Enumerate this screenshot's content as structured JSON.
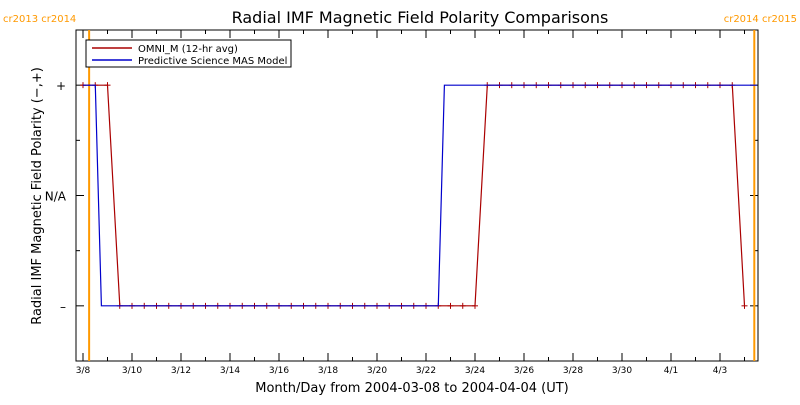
{
  "chart_data": {
    "type": "line",
    "title": "Radial IMF Magnetic Field Polarity Comparisons",
    "xlabel": "Month/Day from 2004-03-08 to 2004-04-04 (UT)",
    "ylabel": "Radial IMF Magnetic Field Polarity (−,+)",
    "x_unit": "days",
    "xlim": [
      0,
      27.5
    ],
    "ylim": [
      -1.5,
      1.5
    ],
    "x_ticks": [
      {
        "x": 0,
        "label": "3/8"
      },
      {
        "x": 2,
        "label": "3/10"
      },
      {
        "x": 4,
        "label": "3/12"
      },
      {
        "x": 6,
        "label": "3/14"
      },
      {
        "x": 8,
        "label": "3/16"
      },
      {
        "x": 10,
        "label": "3/18"
      },
      {
        "x": 12,
        "label": "3/20"
      },
      {
        "x": 14,
        "label": "3/22"
      },
      {
        "x": 16,
        "label": "3/24"
      },
      {
        "x": 18,
        "label": "3/26"
      },
      {
        "x": 20,
        "label": "3/28"
      },
      {
        "x": 22,
        "label": "3/30"
      },
      {
        "x": 24,
        "label": "4/1"
      },
      {
        "x": 26,
        "label": "4/3"
      }
    ],
    "y_ticks": [
      {
        "y": 1,
        "label": "+"
      },
      {
        "y": 0,
        "label": "N/A"
      },
      {
        "y": -1,
        "label": "–"
      }
    ],
    "legend": {
      "position": "top-left",
      "entries": [
        "OMNI_M (12-hr avg)",
        "Predictive Science MAS Model"
      ]
    },
    "series": [
      {
        "name": "OMNI_M (12-hr avg)",
        "color": "#aa0000",
        "marker": "plus",
        "x": [
          0.0,
          0.5,
          1.0,
          1.5,
          2.0,
          2.5,
          3.0,
          3.5,
          4.0,
          4.5,
          5.0,
          5.5,
          6.0,
          6.5,
          7.0,
          7.5,
          8.0,
          8.5,
          9.0,
          9.5,
          10.0,
          10.5,
          11.0,
          11.5,
          12.0,
          12.5,
          13.0,
          13.5,
          14.0,
          14.5,
          15.0,
          15.5,
          16.0,
          16.5,
          17.0,
          17.5,
          18.0,
          18.5,
          19.0,
          19.5,
          20.0,
          20.5,
          21.0,
          21.5,
          22.0,
          22.5,
          23.0,
          23.5,
          24.0,
          24.5,
          25.0,
          25.5,
          26.0,
          26.5,
          27.0
        ],
        "y": [
          1,
          1,
          1,
          -1,
          -1,
          -1,
          -1,
          -1,
          -1,
          -1,
          -1,
          -1,
          -1,
          -1,
          -1,
          -1,
          -1,
          -1,
          -1,
          -1,
          -1,
          -1,
          -1,
          -1,
          -1,
          -1,
          -1,
          -1,
          -1,
          -1,
          -1,
          -1,
          -1,
          1,
          1,
          1,
          1,
          1,
          1,
          1,
          1,
          1,
          1,
          1,
          1,
          1,
          1,
          1,
          1,
          1,
          1,
          1,
          1,
          1,
          -1
        ]
      },
      {
        "name": "Predictive Science MAS Model",
        "color": "#0000cc",
        "x": [
          0.0,
          0.5,
          0.75,
          14.5,
          14.75,
          27.5
        ],
        "y": [
          1,
          1,
          -1,
          -1,
          1,
          1
        ]
      }
    ],
    "carrington_markers": [
      {
        "x": 0.25,
        "labels": [
          "cr2013",
          "cr2014"
        ],
        "color": "#ff9900"
      },
      {
        "x": 27.4,
        "labels": [
          "cr2014",
          "cr2015"
        ],
        "color": "#ff9900"
      }
    ]
  }
}
